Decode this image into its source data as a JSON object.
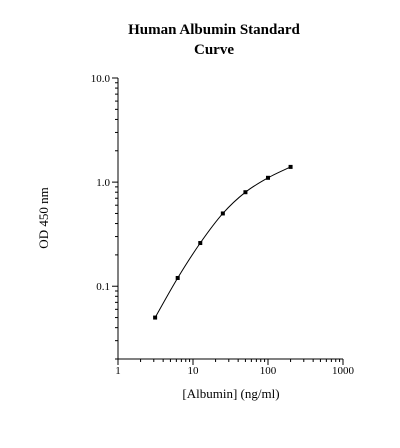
{
  "chart_data": {
    "type": "line",
    "title_lines": [
      "Human Albumin Standard",
      "Curve"
    ],
    "xlabel": "[Albumin] (ng/ml)",
    "ylabel": "OD 450 nm",
    "x_scale": "log",
    "y_scale": "log",
    "xlim": [
      1,
      1000
    ],
    "ylim": [
      0.02,
      10
    ],
    "x_ticks": [
      {
        "value": 1,
        "label": "1"
      },
      {
        "value": 10,
        "label": "10"
      },
      {
        "value": 100,
        "label": "100"
      },
      {
        "value": 1000,
        "label": "1000"
      }
    ],
    "y_ticks": [
      {
        "value": 0.1,
        "label": "0.1"
      },
      {
        "value": 1,
        "label": "1.0"
      },
      {
        "value": 10,
        "label": "10.0"
      }
    ],
    "grid": false,
    "series": [
      {
        "marker": "square",
        "color": "#000000",
        "x": [
          3.125,
          6.25,
          12.5,
          25,
          50,
          100,
          200
        ],
        "y": [
          0.05,
          0.12,
          0.26,
          0.5,
          0.8,
          1.1,
          1.4
        ]
      }
    ]
  }
}
